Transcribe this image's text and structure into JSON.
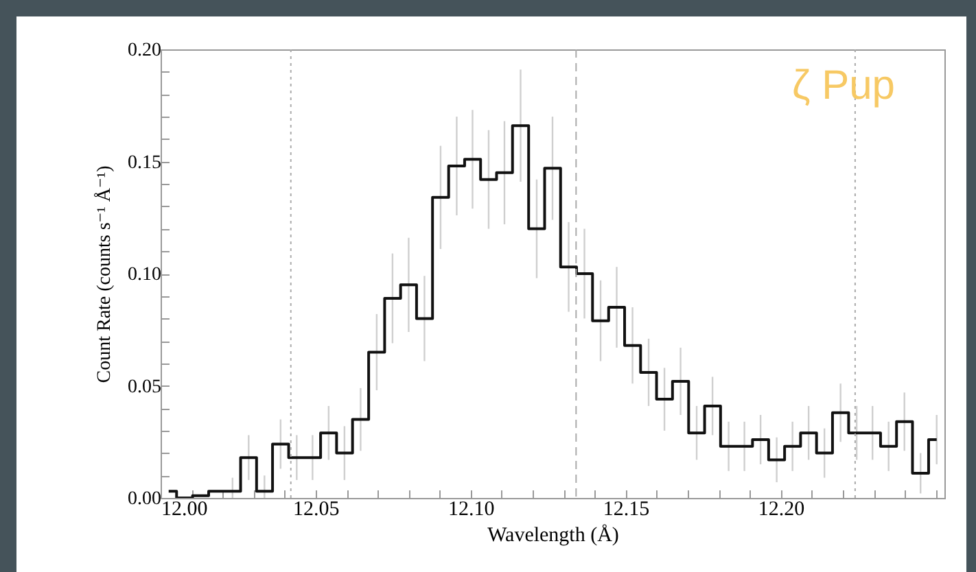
{
  "chart_data": {
    "type": "step",
    "xlabel": "Wavelength (Å)",
    "ylabel": "Count Rate (counts s⁻¹ Å⁻¹)",
    "annotations": [
      "ζ Pup"
    ],
    "x": [
      12.0026,
      12.0077,
      12.0129,
      12.0181,
      12.0232,
      12.0284,
      12.0335,
      12.0387,
      12.0439,
      12.049,
      12.0542,
      12.0593,
      12.0645,
      12.0697,
      12.0748,
      12.08,
      12.0851,
      12.0903,
      12.0955,
      12.1006,
      12.1058,
      12.1109,
      12.1161,
      12.1213,
      12.1264,
      12.1316,
      12.1367,
      12.1419,
      12.1471,
      12.1522,
      12.1574,
      12.1625,
      12.1677,
      12.1729,
      12.178,
      12.1832,
      12.1883,
      12.1935,
      12.1987,
      12.2038,
      12.209,
      12.2141,
      12.2193,
      12.2245,
      12.2296,
      12.2348,
      12.2399,
      12.2451,
      12.2503
    ],
    "values": [
      0.003,
      0,
      0.001,
      0.003,
      0.003,
      0.018,
      0.003,
      0.024,
      0.018,
      0.018,
      0.029,
      0.02,
      0.035,
      0.065,
      0.089,
      0.095,
      0.08,
      0.134,
      0.148,
      0.151,
      0.142,
      0.145,
      0.166,
      0.12,
      0.147,
      0.103,
      0.1,
      0.079,
      0.085,
      0.068,
      0.056,
      0.044,
      0.052,
      0.029,
      0.041,
      0.023,
      0.023,
      0.026,
      0.017,
      0.023,
      0.029,
      0.02,
      0.038,
      0.029,
      0.029,
      0.023,
      0.034,
      0.011,
      0.026
    ],
    "errors": [
      null,
      null,
      null,
      null,
      [
        0,
        0.009
      ],
      0.01,
      [
        0,
        0.01
      ],
      0.011,
      0.01,
      0.01,
      0.012,
      0.012,
      0.014,
      0.017,
      0.02,
      0.021,
      0.019,
      0.023,
      0.022,
      0.022,
      0.022,
      0.023,
      0.025,
      0.022,
      0.023,
      0.02,
      0.02,
      0.018,
      0.018,
      0.017,
      0.015,
      0.014,
      0.015,
      0.012,
      0.013,
      0.011,
      0.011,
      0.011,
      0.01,
      0.011,
      0.012,
      0.011,
      0.013,
      0.012,
      0.012,
      0.011,
      0.013,
      0.009,
      0.011
    ],
    "color": "#111111",
    "xlim": [
      12.0,
      12.2528
    ],
    "xticks": [
      {
        "value": 12.0,
        "label": "12.00"
      },
      {
        "value": 12.01,
        "label": null
      },
      {
        "value": 12.02,
        "label": null
      },
      {
        "value": 12.03,
        "label": null
      },
      {
        "value": 12.04,
        "label": null
      },
      {
        "value": 12.05,
        "label": "12.05"
      },
      {
        "value": 12.06,
        "label": null
      },
      {
        "value": 12.07,
        "label": null
      },
      {
        "value": 12.08,
        "label": null
      },
      {
        "value": 12.09,
        "label": null
      },
      {
        "value": 12.1,
        "label": "12.10"
      },
      {
        "value": 12.11,
        "label": null
      },
      {
        "value": 12.12,
        "label": null
      },
      {
        "value": 12.13,
        "label": null
      },
      {
        "value": 12.14,
        "label": null
      },
      {
        "value": 12.15,
        "label": "12.15"
      },
      {
        "value": 12.16,
        "label": null
      },
      {
        "value": 12.17,
        "label": null
      },
      {
        "value": 12.18,
        "label": null
      },
      {
        "value": 12.19,
        "label": null
      },
      {
        "value": 12.2,
        "label": "12.20"
      },
      {
        "value": 12.21,
        "label": null
      },
      {
        "value": 12.22,
        "label": null
      },
      {
        "value": 12.23,
        "label": null
      },
      {
        "value": 12.24,
        "label": null
      },
      {
        "value": 12.25,
        "label": null
      }
    ],
    "ylim": [
      0,
      0.2
    ],
    "yticks": [
      {
        "value": 0,
        "label": "0.00"
      },
      {
        "value": 0.01,
        "label": null
      },
      {
        "value": 0.02,
        "label": null
      },
      {
        "value": 0.03,
        "label": null
      },
      {
        "value": 0.04,
        "label": null
      },
      {
        "value": 0.05,
        "label": "0.05"
      },
      {
        "value": 0.06,
        "label": null
      },
      {
        "value": 0.07,
        "label": null
      },
      {
        "value": 0.08,
        "label": null
      },
      {
        "value": 0.09,
        "label": null
      },
      {
        "value": 0.1,
        "label": "0.10"
      },
      {
        "value": 0.11,
        "label": null
      },
      {
        "value": 0.12,
        "label": null
      },
      {
        "value": 0.13,
        "label": null
      },
      {
        "value": 0.14,
        "label": null
      },
      {
        "value": 0.15,
        "label": "0.15"
      },
      {
        "value": 0.16,
        "label": null
      },
      {
        "value": 0.17,
        "label": null
      },
      {
        "value": 0.18,
        "label": null
      },
      {
        "value": 0.19,
        "label": null
      },
      {
        "value": 0.2,
        "label": "0.20"
      }
    ],
    "ref_lines": [
      {
        "axis": "x",
        "value": 12.042,
        "color": "#aaaaaa",
        "line_style": "dotted"
      },
      {
        "axis": "x",
        "value": 12.134,
        "color": "#aaaaaa",
        "line_style": "dashed"
      },
      {
        "axis": "x",
        "value": 12.224,
        "color": "#aaaaaa",
        "line_style": "dotted"
      }
    ]
  }
}
